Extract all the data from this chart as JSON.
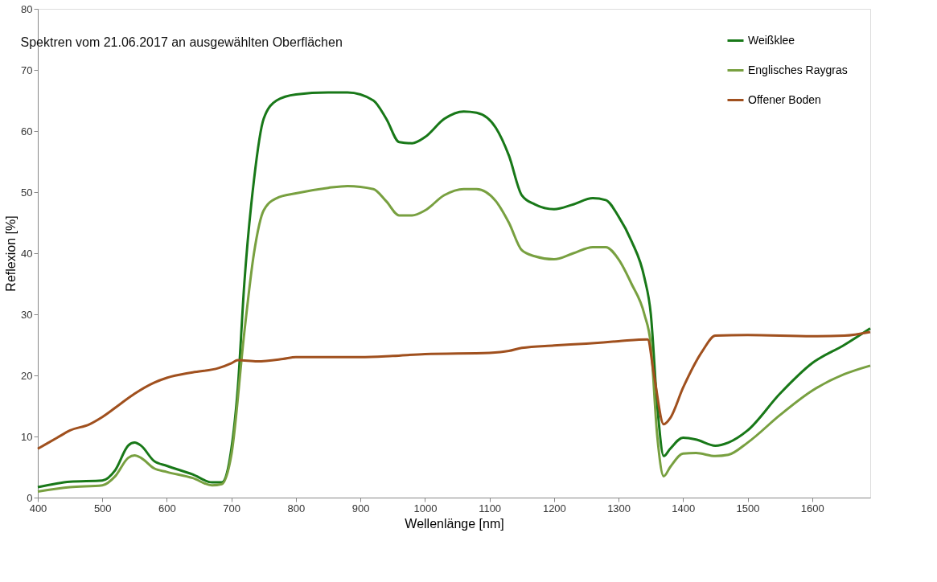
{
  "chart_data": {
    "type": "line",
    "title": "Spektren vom 21.06.2017 an ausgewählten Oberflächen",
    "xlabel": "Wellenlänge [nm]",
    "ylabel": "Reflexion [%]",
    "xlim": [
      400,
      1690
    ],
    "xticks": [
      400,
      500,
      600,
      700,
      800,
      900,
      1000,
      1100,
      1200,
      1300,
      1400,
      1500,
      1600
    ],
    "ylim": [
      0,
      80
    ],
    "yticks": [
      0,
      10,
      20,
      30,
      40,
      50,
      60,
      70,
      80
    ],
    "grid": false,
    "legend": "top right",
    "marker": "none",
    "line_style": "solid",
    "series": [
      {
        "name": "Weißklee",
        "color": "#187818",
        "x": [
          400,
          450,
          500,
          520,
          540,
          550,
          560,
          580,
          600,
          640,
          670,
          685,
          700,
          710,
          720,
          735,
          750,
          770,
          800,
          850,
          880,
          920,
          940,
          960,
          980,
          1000,
          1030,
          1060,
          1080,
          1110,
          1130,
          1150,
          1170,
          1200,
          1230,
          1260,
          1280,
          1300,
          1320,
          1340,
          1350,
          1360,
          1370,
          1380,
          1400,
          1420,
          1450,
          1470,
          1500,
          1550,
          1600,
          1650,
          1690
        ],
        "values": [
          1.7,
          2.6,
          2.8,
          4.5,
          8.5,
          9.0,
          8.5,
          6,
          5.2,
          3.8,
          2.5,
          2.5,
          8,
          18,
          35,
          52,
          62,
          65,
          66,
          66.3,
          66.3,
          65,
          62,
          58.2,
          58,
          59,
          62,
          63.2,
          63,
          60.5,
          56,
          49.5,
          48,
          47.2,
          48,
          49,
          48.7,
          46,
          42,
          36,
          30,
          15,
          6.8,
          8,
          9.8,
          9.5,
          8.5,
          9,
          11,
          17,
          22,
          25,
          27.7
        ]
      },
      {
        "name": "Englisches Raygras",
        "color": "#78a040",
        "x": [
          400,
          450,
          500,
          520,
          540,
          550,
          560,
          580,
          600,
          640,
          670,
          685,
          700,
          720,
          735,
          750,
          770,
          800,
          850,
          880,
          920,
          940,
          960,
          980,
          1000,
          1030,
          1060,
          1080,
          1110,
          1130,
          1150,
          1170,
          1200,
          1230,
          1260,
          1280,
          1300,
          1320,
          1340,
          1350,
          1360,
          1370,
          1380,
          1400,
          1420,
          1450,
          1470,
          1500,
          1550,
          1600,
          1650,
          1690
        ],
        "values": [
          1.0,
          1.7,
          2,
          3.5,
          6.5,
          6.9,
          6.5,
          4.8,
          4.2,
          3.2,
          2,
          2.2,
          7,
          27,
          40,
          47,
          49,
          49.8,
          50.7,
          51,
          50.5,
          48.5,
          46.2,
          46.2,
          47,
          49.5,
          50.5,
          50.5,
          48.5,
          45,
          40.5,
          39.5,
          39,
          40,
          41,
          41,
          39,
          35,
          30,
          25,
          10,
          3.5,
          5,
          7.2,
          7.3,
          6.8,
          7,
          9,
          13.5,
          17.5,
          20.2,
          21.6
        ]
      },
      {
        "name": "Offener Boden",
        "color": "#a0501e",
        "x": [
          400,
          430,
          450,
          480,
          500,
          530,
          550,
          580,
          600,
          640,
          680,
          700,
          710,
          740,
          780,
          800,
          900,
          950,
          1000,
          1100,
          1130,
          1150,
          1200,
          1250,
          1300,
          1345,
          1355,
          1370,
          1380,
          1400,
          1430,
          1450,
          1500,
          1600,
          1650,
          1690
        ],
        "values": [
          8,
          9.8,
          11,
          12,
          13.2,
          15.5,
          17,
          18.8,
          19.6,
          20.5,
          21.2,
          22,
          22.5,
          22.3,
          22.7,
          23,
          23,
          23.2,
          23.5,
          23.7,
          24,
          24.5,
          24.9,
          25.2,
          25.6,
          25.9,
          20,
          12,
          13,
          18,
          24,
          26.5,
          26.6,
          26.4,
          26.5,
          27.1
        ]
      }
    ]
  }
}
